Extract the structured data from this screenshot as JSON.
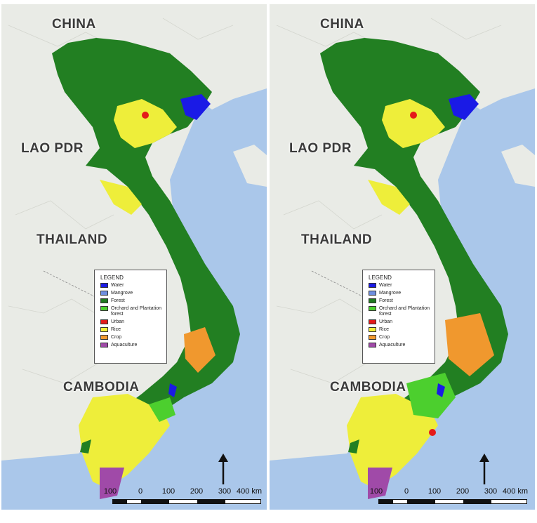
{
  "panels": [
    {
      "countries": {
        "china": "CHINA",
        "lao": "LAO PDR",
        "thailand": "THAILAND",
        "cambodia": "CAMBODIA"
      },
      "legend": {
        "title": "LEGEND",
        "items": [
          {
            "label": "Water",
            "color": "#1a1ae6"
          },
          {
            "label": "Mangrove",
            "color": "#6f8ee0"
          },
          {
            "label": "Forest",
            "color": "#1f7a1f"
          },
          {
            "label": "Orchard and Plantation forest",
            "color": "#4ccf2e"
          },
          {
            "label": "Urban",
            "color": "#e41a1a"
          },
          {
            "label": "Rice",
            "color": "#f2f23a"
          },
          {
            "label": "Crop",
            "color": "#f29a2e"
          },
          {
            "label": "Aquaculture",
            "color": "#a04aa8"
          }
        ]
      },
      "scale": {
        "labels": [
          "100",
          "0",
          "100",
          "200",
          "300",
          "400 km"
        ]
      }
    },
    {
      "countries": {
        "china": "CHINA",
        "lao": "LAO PDR",
        "thailand": "THAILAND",
        "cambodia": "CAMBODIA"
      },
      "legend": {
        "title": "LEGEND",
        "items": [
          {
            "label": "Water",
            "color": "#1a1ae6"
          },
          {
            "label": "Mangrove",
            "color": "#6f8ee0"
          },
          {
            "label": "Forest",
            "color": "#1f7a1f"
          },
          {
            "label": "Orchard and Plantation forest",
            "color": "#4ccf2e"
          },
          {
            "label": "Urban",
            "color": "#e41a1a"
          },
          {
            "label": "Rice",
            "color": "#f2f23a"
          },
          {
            "label": "Crop",
            "color": "#f29a2e"
          },
          {
            "label": "Aquaculture",
            "color": "#a04aa8"
          }
        ]
      },
      "scale": {
        "labels": [
          "100",
          "0",
          "100",
          "200",
          "300",
          "400 km"
        ]
      }
    }
  ],
  "colors": {
    "sea": "#aac7ea",
    "land": "#e9ebe6",
    "forest": "#227f22",
    "orchard": "#4ccf2e",
    "rice": "#eeee3a",
    "crop": "#f0982e",
    "urban": "#e41a1a",
    "water": "#1a1ae6",
    "aquaculture": "#a04aa8",
    "border": "#1a1a1a"
  }
}
